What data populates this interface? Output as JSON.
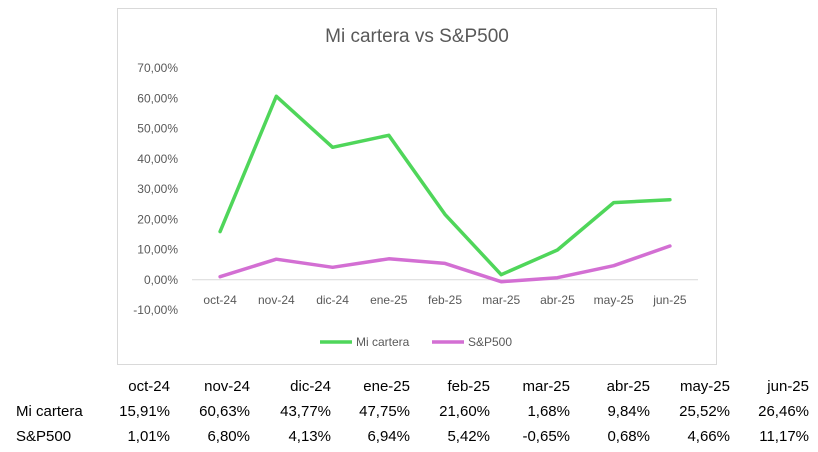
{
  "chart_data": {
    "type": "line",
    "title": "Mi cartera vs S&P500",
    "categories": [
      "oct-24",
      "nov-24",
      "dic-24",
      "ene-25",
      "feb-25",
      "mar-25",
      "abr-25",
      "may-25",
      "jun-25"
    ],
    "series": [
      {
        "name": "Mi cartera",
        "color": "#4fd65a",
        "values": [
          15.91,
          60.63,
          43.77,
          47.75,
          21.6,
          1.68,
          9.84,
          25.52,
          26.46
        ]
      },
      {
        "name": "S&P500",
        "color": "#d36fd3",
        "values": [
          1.01,
          6.8,
          4.13,
          6.94,
          5.42,
          -0.65,
          0.68,
          4.66,
          11.17
        ]
      }
    ],
    "ylim": [
      -10,
      70
    ],
    "yticks": [
      "-10,00%",
      "0,00%",
      "10,00%",
      "20,00%",
      "30,00%",
      "40,00%",
      "50,00%",
      "60,00%",
      "70,00%"
    ],
    "grid": false,
    "legend": "bottom"
  },
  "table": {
    "headers": [
      "oct-24",
      "nov-24",
      "dic-24",
      "ene-25",
      "feb-25",
      "mar-25",
      "abr-25",
      "may-25",
      "jun-25"
    ],
    "rows": [
      {
        "label": "Mi cartera",
        "cells": [
          "15,91%",
          "60,63%",
          "43,77%",
          "47,75%",
          "21,60%",
          "1,68%",
          "9,84%",
          "25,52%",
          "26,46%"
        ]
      },
      {
        "label": "S&P500",
        "cells": [
          "1,01%",
          "6,80%",
          "4,13%",
          "6,94%",
          "5,42%",
          "-0,65%",
          "0,68%",
          "4,66%",
          "11,17%"
        ]
      }
    ]
  }
}
